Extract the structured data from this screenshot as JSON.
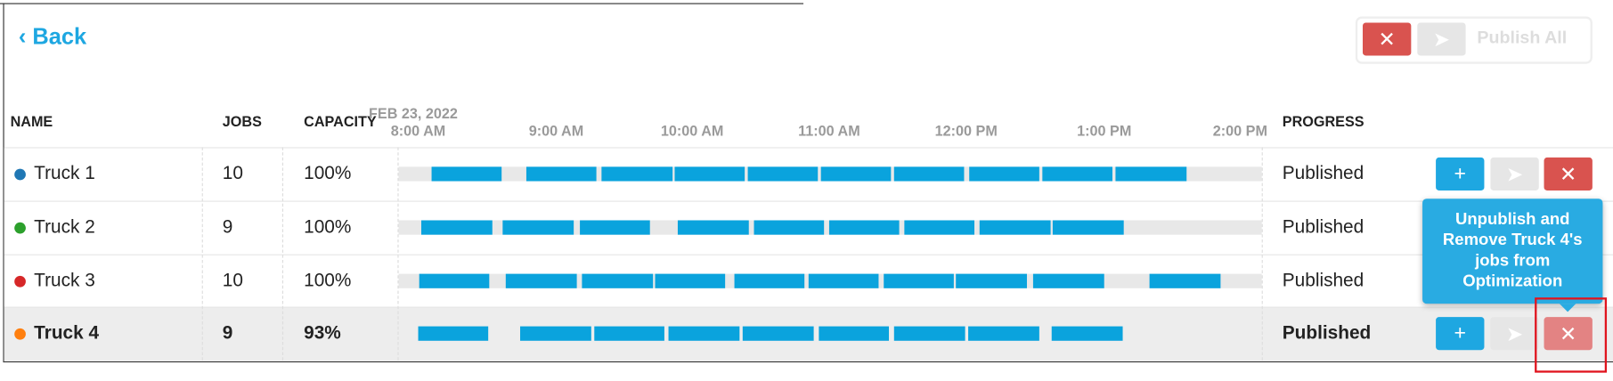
{
  "header": {
    "back": "Back",
    "publish_all": "Publish All"
  },
  "table": {
    "columns": {
      "name": "NAME",
      "jobs": "JOBS",
      "capacity": "CAPACITY",
      "progress": "PROGRESS"
    },
    "timeline": {
      "date": "FEB 23, 2022",
      "times": [
        "8:00 AM",
        "9:00 AM",
        "10:00 AM",
        "11:00 AM",
        "12:00 PM",
        "1:00 PM",
        "2:00 PM"
      ]
    },
    "rows": [
      {
        "name": "Truck 1",
        "jobs": 10,
        "capacity": "100%",
        "progress": "Published"
      },
      {
        "name": "Truck 2",
        "jobs": 9,
        "capacity": "100%",
        "progress": "Published"
      },
      {
        "name": "Truck 3",
        "jobs": 10,
        "capacity": "100%",
        "progress": "Published"
      },
      {
        "name": "Truck 4",
        "jobs": 9,
        "capacity": "93%",
        "progress": "Published"
      }
    ]
  },
  "tooltip": "Unpublish and Remove Truck 4's jobs from Optimization"
}
